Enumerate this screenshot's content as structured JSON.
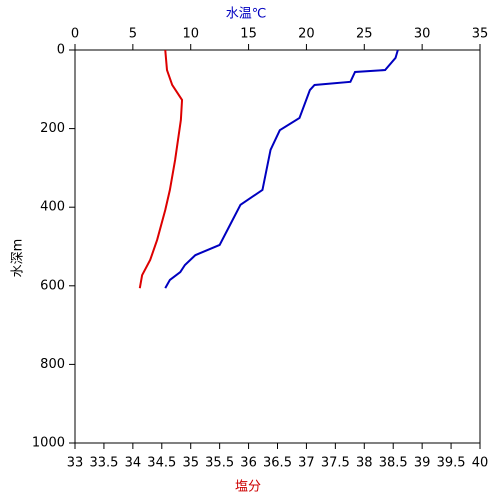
{
  "chart_data": {
    "type": "line",
    "xlabel": "塩分",
    "x2label": "水温℃",
    "ylabel": "水深m",
    "xlim": [
      33,
      40
    ],
    "xticks": [
      33,
      33.5,
      34,
      34.5,
      35,
      35.5,
      36,
      36.5,
      37,
      37.5,
      38,
      38.5,
      39,
      39.5,
      40
    ],
    "x2lim": [
      0,
      35
    ],
    "x2ticks": [
      0,
      5,
      10,
      15,
      20,
      25,
      30,
      35
    ],
    "ylim": [
      0,
      1000
    ],
    "yticks": [
      0,
      200,
      400,
      600,
      800,
      1000
    ],
    "y_inverted": true,
    "series": [
      {
        "color": "#0000c0",
        "axis": "x2",
        "x": [
          27.9,
          27.7,
          26.8,
          24.2,
          23.8,
          20.7,
          20.3,
          19.4,
          17.7,
          16.9,
          16.2,
          14.3,
          13.4,
          12.5,
          10.4,
          9.5,
          9.1,
          8.2,
          7.8
        ],
        "y": [
          0,
          20,
          51,
          56,
          81,
          89,
          102,
          173,
          204,
          254,
          356,
          394,
          445,
          496,
          522,
          547,
          565,
          585,
          606
        ]
      },
      {
        "color": "#dd0000",
        "axis": "x",
        "x": [
          34.56,
          34.59,
          34.68,
          34.85,
          34.83,
          34.73,
          34.64,
          34.56,
          34.42,
          34.3,
          34.16,
          34.12
        ],
        "y": [
          0,
          51,
          89,
          127,
          178,
          280,
          356,
          407,
          483,
          534,
          573,
          606
        ]
      }
    ]
  }
}
